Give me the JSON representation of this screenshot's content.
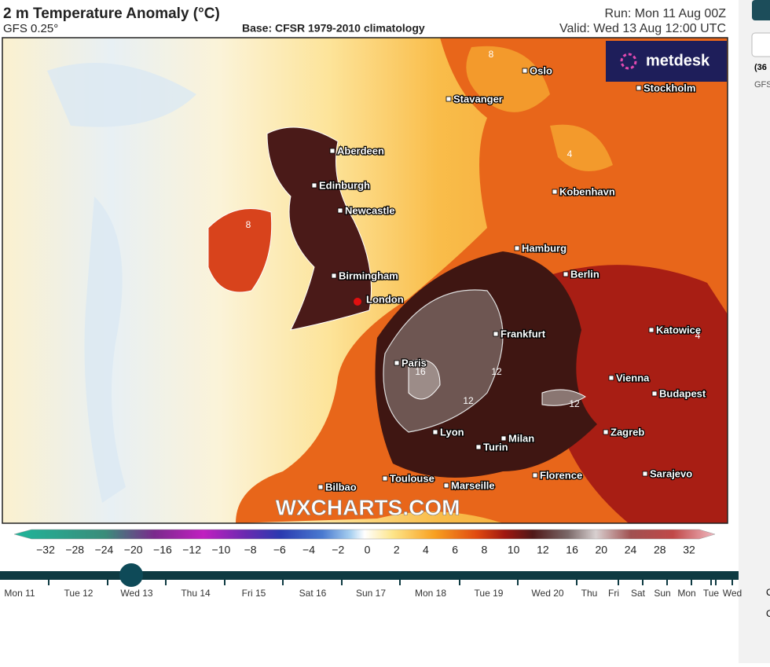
{
  "header": {
    "title": "2 m Temperature Anomaly (°C)",
    "model": "GFS 0.25°",
    "base": "Base: CFSR 1979-2010 climatology",
    "run": "Run: Mon 11 Aug 00Z",
    "valid": "Valid: Wed 13 Aug 12:00 UTC"
  },
  "logo": "metdesk",
  "watermark": "WXCHARTS.COM",
  "cities": [
    "Oslo",
    "Stavanger",
    "Stockholm",
    "Aberdeen",
    "Edinburgh",
    "Kobenhavn",
    "Newcastle",
    "Hamburg",
    "Birmingham",
    "Berlin",
    "London",
    "Katowice",
    "Frankfurt",
    "Paris",
    "Vienna",
    "Budapest",
    "Zagreb",
    "Lyon",
    "Milan",
    "Turin",
    "Florence",
    "Sarajevo",
    "Toulouse",
    "Bilbao",
    "Marseille"
  ],
  "contour_labels": [
    "8",
    "4",
    "8",
    "16",
    "12",
    "12",
    "12",
    "4"
  ],
  "colorbar": [
    "−32",
    "−28",
    "−24",
    "−20",
    "−16",
    "−12",
    "−10",
    "−8",
    "−6",
    "−4",
    "−2",
    "0",
    "2",
    "4",
    "6",
    "8",
    "10",
    "12",
    "16",
    "20",
    "24",
    "28",
    "32"
  ],
  "timeline": [
    "Mon 11",
    "Tue 12",
    "Wed 13",
    "Thu 14",
    "Fri 15",
    "Sat 16",
    "Sun 17",
    "Mon 18",
    "Tue 19",
    "Wed 20",
    "Thu",
    "Fri",
    "Sat",
    "Sun",
    "Mon",
    "Tue",
    "Wed"
  ],
  "side_panel": {
    "run_hint": "(36",
    "model": "GFS",
    "c1": "C",
    "c2": "C"
  }
}
